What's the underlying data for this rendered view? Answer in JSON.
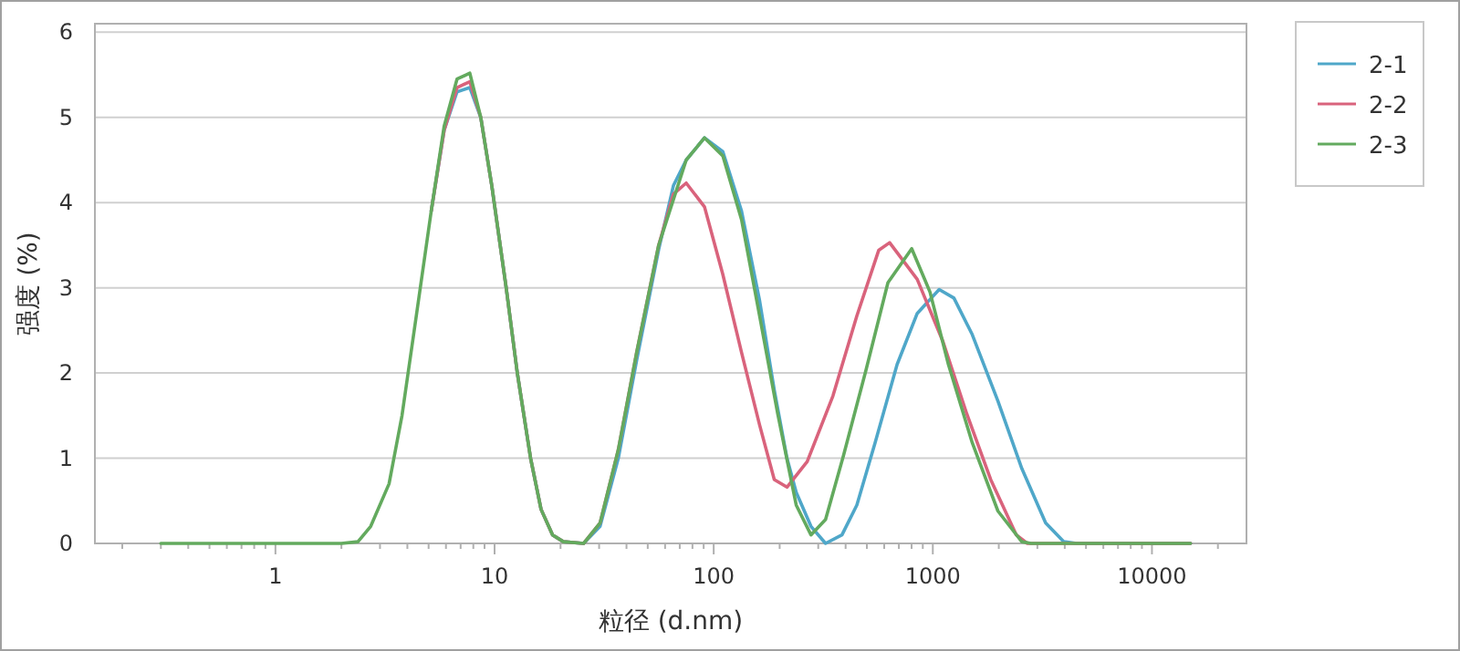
{
  "chart_data": {
    "type": "line",
    "xlabel": "粒径 (d.nm)",
    "ylabel": "强度 (%)",
    "log": "x",
    "xlim": [
      0.15,
      27000
    ],
    "ylim": [
      0,
      6.1
    ],
    "yticks": [
      0,
      1,
      2,
      3,
      4,
      5,
      6
    ],
    "xticks": [
      {
        "value": 0.2,
        "label": null
      },
      {
        "value": 0.3,
        "label": null
      },
      {
        "value": 0.4,
        "label": null
      },
      {
        "value": 0.5,
        "label": null
      },
      {
        "value": 0.6,
        "label": null
      },
      {
        "value": 0.7,
        "label": null
      },
      {
        "value": 0.8,
        "label": null
      },
      {
        "value": 0.9,
        "label": null
      },
      1,
      {
        "value": 2,
        "label": null
      },
      {
        "value": 3,
        "label": null
      },
      {
        "value": 4,
        "label": null
      },
      {
        "value": 5,
        "label": null
      },
      {
        "value": 6,
        "label": null
      },
      {
        "value": 7,
        "label": null
      },
      {
        "value": 8,
        "label": null
      },
      {
        "value": 9,
        "label": null
      },
      10,
      {
        "value": 20,
        "label": null
      },
      {
        "value": 30,
        "label": null
      },
      {
        "value": 40,
        "label": null
      },
      {
        "value": 50,
        "label": null
      },
      {
        "value": 60,
        "label": null
      },
      {
        "value": 70,
        "label": null
      },
      {
        "value": 80,
        "label": null
      },
      {
        "value": 90,
        "label": null
      },
      100,
      {
        "value": 200,
        "label": null
      },
      {
        "value": 300,
        "label": null
      },
      {
        "value": 400,
        "label": null
      },
      {
        "value": 500,
        "label": null
      },
      {
        "value": 600,
        "label": null
      },
      {
        "value": 700,
        "label": null
      },
      {
        "value": 800,
        "label": null
      },
      {
        "value": 900,
        "label": null
      },
      1000,
      {
        "value": 2000,
        "label": null
      },
      {
        "value": 3000,
        "label": null
      },
      {
        "value": 4000,
        "label": null
      },
      {
        "value": 5000,
        "label": null
      },
      {
        "value": 6000,
        "label": null
      },
      {
        "value": 7000,
        "label": null
      },
      {
        "value": 8000,
        "label": null
      },
      {
        "value": 9000,
        "label": null
      },
      10000,
      {
        "value": 20000,
        "label": null
      }
    ],
    "grid": "y",
    "legend": "top right",
    "line_style": "solid",
    "marker": "none",
    "series": [
      {
        "name": "2-1",
        "color": "#4fa7c9",
        "x": [
          5.14,
          5.89,
          6.74,
          7.71,
          8.65,
          9.71,
          11.3,
          12.7,
          14.6,
          16.3,
          18.4,
          20.6,
          25.5,
          30.3,
          36.7,
          44.5,
          56.1,
          65.5,
          74.9,
          90.8,
          110,
          134,
          162,
          189,
          216,
          238,
          278,
          324,
          385,
          450,
          545,
          687,
          849,
          1069,
          1248,
          1514,
          1982,
          2547,
          3272,
          3963,
          4540,
          15000
        ],
        "values": [
          3.9,
          4.85,
          5.3,
          5.35,
          5.0,
          4.2,
          3.0,
          2.0,
          1.0,
          0.4,
          0.1,
          0.02,
          0,
          0.2,
          1.0,
          2.15,
          3.45,
          4.2,
          4.5,
          4.76,
          4.6,
          3.9,
          2.85,
          1.8,
          1.0,
          0.6,
          0.2,
          0,
          0.1,
          0.45,
          1.18,
          2.1,
          2.7,
          2.98,
          2.88,
          2.45,
          1.67,
          0.88,
          0.24,
          0.02,
          0,
          0
        ]
      },
      {
        "name": "2-2",
        "color": "#d9637c",
        "x": [
          5.14,
          5.89,
          6.74,
          7.71,
          8.65,
          9.71,
          11.3,
          12.7,
          14.6,
          16.3,
          18.4,
          20.6,
          25.5,
          30.3,
          36.7,
          44.5,
          56.1,
          65.5,
          74.9,
          90.8,
          110,
          134,
          162,
          189,
          216,
          267,
          350,
          450,
          566,
          635,
          849,
          1112,
          1429,
          1837,
          2404,
          2698,
          15000
        ],
        "values": [
          3.9,
          4.85,
          5.35,
          5.42,
          5.0,
          4.2,
          3.0,
          2.0,
          1.0,
          0.4,
          0.1,
          0.02,
          0,
          0.24,
          1.1,
          2.24,
          3.5,
          4.1,
          4.23,
          3.95,
          3.16,
          2.24,
          1.39,
          0.75,
          0.66,
          0.96,
          1.73,
          2.67,
          3.44,
          3.53,
          3.1,
          2.37,
          1.52,
          0.75,
          0.1,
          0,
          0
        ]
      },
      {
        "name": "2-3",
        "color": "#63aa5e",
        "x": [
          0.3,
          2.0,
          2.38,
          2.72,
          3.3,
          3.78,
          4.41,
          5.14,
          5.89,
          6.74,
          7.71,
          8.65,
          9.71,
          11.3,
          12.7,
          14.6,
          16.3,
          18.4,
          20.6,
          25.5,
          30.3,
          36.7,
          44.5,
          56.1,
          74.9,
          90.8,
          110,
          134,
          162,
          196,
          238,
          278,
          324,
          391,
          495,
          624,
          801,
          971,
          1178,
          1514,
          1982,
          2547,
          2806,
          15000
        ],
        "values": [
          0,
          0,
          0.02,
          0.2,
          0.7,
          1.5,
          2.7,
          3.9,
          4.9,
          5.45,
          5.52,
          5.0,
          4.2,
          3.0,
          2.0,
          1.0,
          0.4,
          0.1,
          0.02,
          0,
          0.24,
          1.1,
          2.24,
          3.5,
          4.5,
          4.76,
          4.55,
          3.8,
          2.67,
          1.52,
          0.45,
          0.1,
          0.28,
          1.03,
          2.03,
          3.06,
          3.46,
          2.95,
          2.1,
          1.18,
          0.38,
          0.02,
          0,
          0
        ]
      }
    ]
  }
}
